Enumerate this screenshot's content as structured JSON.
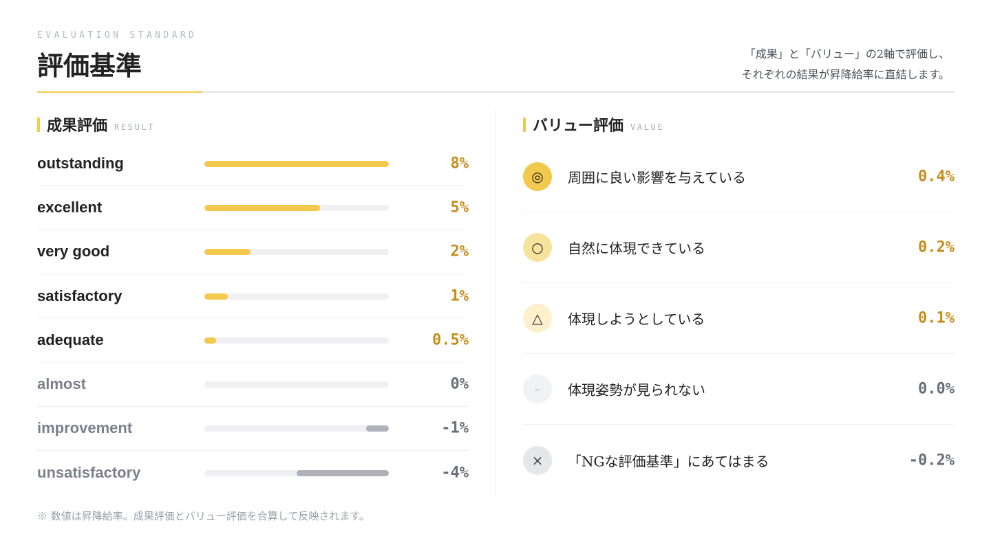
{
  "header": {
    "eyebrow": "EVALUATION STANDARD",
    "title": "評価基準",
    "lead_line1": "「成果」と「バリュー」の2軸で評価し、",
    "lead_line2": "それぞれの結果が昇降給率に直結します。"
  },
  "colors": {
    "accent": "#f2c94c",
    "positive_value": "#c68d1c",
    "neutral_value": "#6a6e78",
    "negative_bar": "#aeb1b8"
  },
  "result_section": {
    "title": "成果評価",
    "subtitle": "RESULT",
    "scale": {
      "min_percent": -8,
      "max_percent": 8
    },
    "items": [
      {
        "label": "outstanding",
        "value_text": "8%",
        "percent": 8
      },
      {
        "label": "excellent",
        "value_text": "5%",
        "percent": 5
      },
      {
        "label": "very good",
        "value_text": "2%",
        "percent": 2
      },
      {
        "label": "satisfactory",
        "value_text": "1%",
        "percent": 1
      },
      {
        "label": "adequate",
        "value_text": "0.5%",
        "percent": 0.5
      },
      {
        "label": "almost",
        "value_text": "0%",
        "percent": 0
      },
      {
        "label": "improvement",
        "value_text": "-1%",
        "percent": -1
      },
      {
        "label": "unsatisfactory",
        "value_text": "-4%",
        "percent": -4
      }
    ]
  },
  "value_section": {
    "title": "バリュー評価",
    "subtitle": "VALUE",
    "items": [
      {
        "symbol": "◎",
        "icon": "double-circle-icon",
        "label": "周囲に良い影響を与えている",
        "value_text": "0.4%"
      },
      {
        "symbol": "○",
        "icon": "circle-icon",
        "label": "自然に体現できている",
        "value_text": "0.2%"
      },
      {
        "symbol": "△",
        "icon": "triangle-icon",
        "label": "体現しようとしている",
        "value_text": "0.1%"
      },
      {
        "symbol": "–",
        "icon": "dash-icon",
        "label": "体現姿勢が見られない",
        "value_text": "0.0%"
      },
      {
        "symbol": "×",
        "icon": "cross-icon",
        "label": "「NGな評価基準」にあてはまる",
        "value_text": "-0.2%"
      }
    ]
  },
  "footnote": "※ 数値は昇降給率。成果評価とバリュー評価を合算して反映されます。"
}
